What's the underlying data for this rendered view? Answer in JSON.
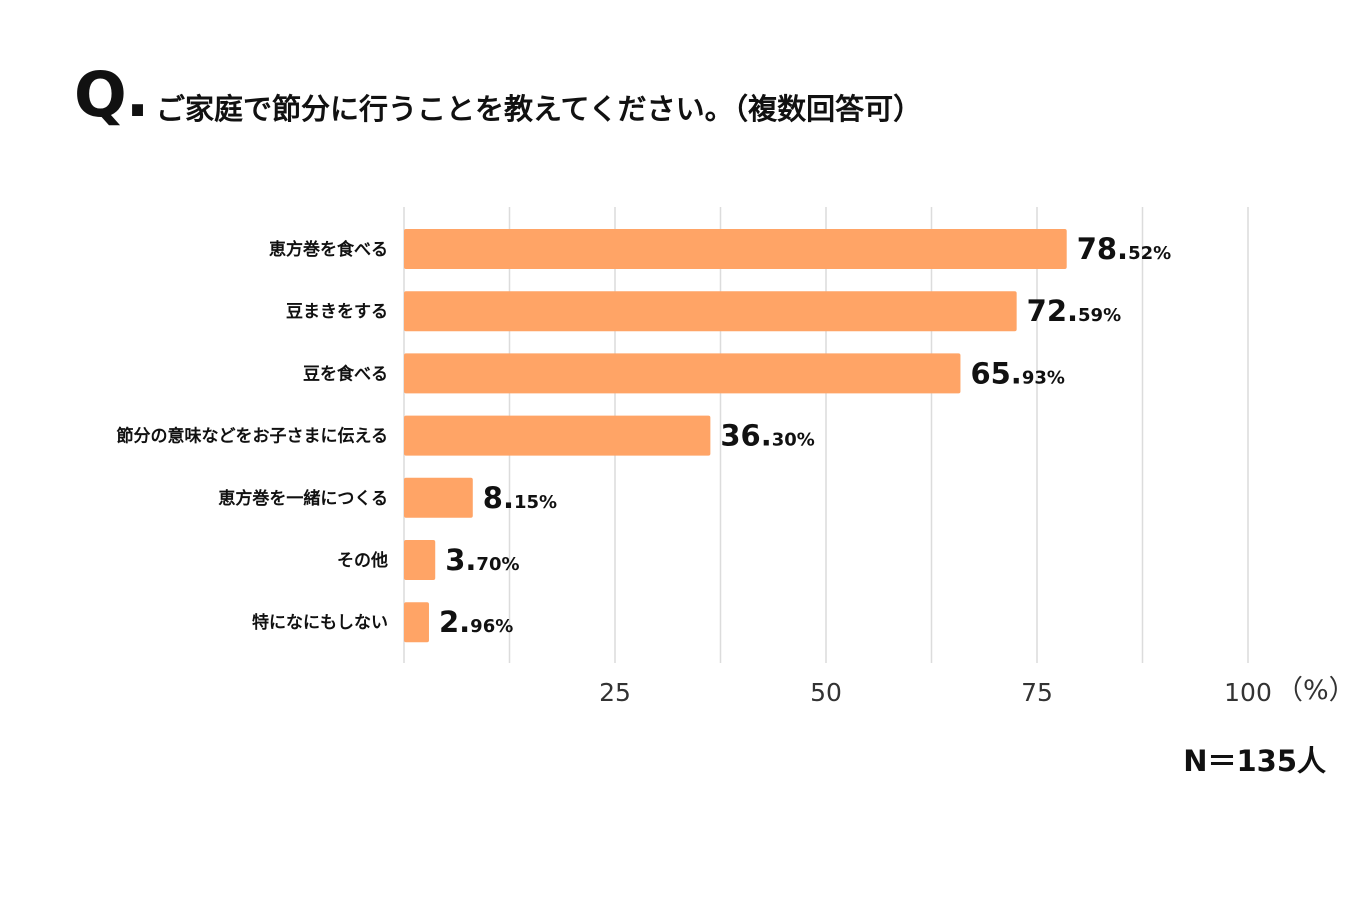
{
  "question": {
    "mark": "Q.",
    "text": "ご家庭で節分に行うことを教えてください。（複数回答可）"
  },
  "sample_size": "N＝135人",
  "colors": {
    "bar": "#FFA466",
    "grid": "#dcdcdc"
  },
  "chart_data": {
    "type": "bar",
    "orientation": "horizontal",
    "title": "ご家庭で節分に行うことを教えてください。（複数回答可）",
    "categories": [
      "恵方巻を食べる",
      "豆まきをする",
      "豆を食べる",
      "節分の意味などをお子さまに伝える",
      "恵方巻を一緒につくる",
      "その他",
      "特になにもしない"
    ],
    "values": [
      78.52,
      72.59,
      65.93,
      36.3,
      8.15,
      3.7,
      2.96
    ],
    "value_labels": [
      {
        "int": "78.",
        "dec": "52%"
      },
      {
        "int": "72.",
        "dec": "59%"
      },
      {
        "int": "65.",
        "dec": "93%"
      },
      {
        "int": "36.",
        "dec": "30%"
      },
      {
        "int": "8.",
        "dec": "15%"
      },
      {
        "int": "3.",
        "dec": "70%"
      },
      {
        "int": "2.",
        "dec": "96%"
      }
    ],
    "xlim": [
      0,
      100
    ],
    "grid_values": [
      0,
      12.5,
      25,
      37.5,
      50,
      62.5,
      75,
      87.5,
      100
    ],
    "tick_values": [
      25,
      50,
      75,
      100
    ],
    "tick_labels": [
      "25",
      "50",
      "75",
      "100"
    ],
    "unit_label": "（%）",
    "grid": true
  }
}
